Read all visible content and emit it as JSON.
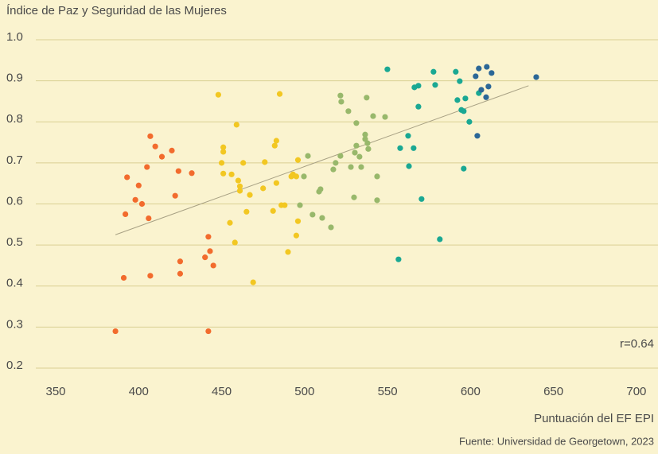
{
  "chart_data": {
    "type": "scatter",
    "title": "Índice de Paz y Seguridad de las Mujeres",
    "x_label": "Puntuación del EF EPI",
    "source": "Fuente: Universidad de Georgetown, 2023",
    "annotation": "r=0.64",
    "xlim": [
      338,
      713
    ],
    "ylim": [
      0.2,
      1.0
    ],
    "xticks": [
      350,
      400,
      450,
      500,
      550,
      600,
      650,
      700
    ],
    "yticks": [
      0.2,
      0.3,
      0.4,
      0.5,
      0.6,
      0.7,
      0.8,
      0.9,
      {
        "value": 1.0,
        "label": "1.0"
      }
    ],
    "grid": true,
    "series": [
      {
        "color": "#f26b2d",
        "x": [
          386,
          391,
          393,
          392,
          398,
          400,
          402,
          405,
          406,
          407,
          410,
          414,
          420,
          422,
          424,
          432,
          425,
          425,
          407,
          440,
          442,
          443,
          445,
          442
        ],
        "values": [
          0.29,
          0.42,
          0.665,
          0.575,
          0.61,
          0.645,
          0.6,
          0.69,
          0.565,
          0.765,
          0.74,
          0.715,
          0.73,
          0.62,
          0.68,
          0.675,
          0.46,
          0.43,
          0.425,
          0.47,
          0.52,
          0.485,
          0.45,
          0.29
        ]
      },
      {
        "color": "#f2c722",
        "x": [
          448,
          451,
          451,
          450,
          451,
          456,
          455,
          458,
          459,
          460,
          461,
          461,
          463,
          465,
          467,
          469,
          475,
          476,
          481,
          482,
          483,
          483,
          485,
          486,
          488,
          490,
          492,
          493,
          495,
          495,
          496,
          496
        ],
        "values": [
          0.866,
          0.738,
          0.727,
          0.7,
          0.674,
          0.672,
          0.554,
          0.506,
          0.793,
          0.657,
          0.643,
          0.632,
          0.7,
          0.581,
          0.622,
          0.409,
          0.638,
          0.702,
          0.583,
          0.742,
          0.754,
          0.651,
          0.868,
          0.597,
          0.597,
          0.483,
          0.667,
          0.672,
          0.667,
          0.523,
          0.558,
          0.707
        ]
      },
      {
        "color": "#98b86b",
        "x": [
          521.6,
          522.1,
          537.4,
          526.4,
          531.2,
          541.3,
          548.5,
          531.2,
          530.3,
          533.1,
          534.1,
          536.5,
          536.5,
          537.9,
          538.4,
          527.9,
          543.7,
          543.7,
          529.8,
          521.6,
          518.7,
          517.3,
          509.6,
          508.7,
          504.8,
          510.6,
          502,
          499.6,
          497.2,
          515.9
        ],
        "values": [
          0.864,
          0.849,
          0.859,
          0.826,
          0.797,
          0.814,
          0.812,
          0.742,
          0.725,
          0.715,
          0.69,
          0.758,
          0.769,
          0.748,
          0.734,
          0.69,
          0.667,
          0.609,
          0.616,
          0.717,
          0.7,
          0.684,
          0.636,
          0.63,
          0.574,
          0.566,
          0.717,
          0.667,
          0.597,
          0.543
        ]
      },
      {
        "color": "#1aa893",
        "x": [
          549.9,
          566.2,
          568.6,
          577.7,
          578.7,
          591.1,
          593.5,
          592.1,
          594.5,
          596.9,
          595.9,
          599.3,
          605,
          568.6,
          562.4,
          557.6,
          565.7,
          562.9,
          570.5,
          581.5,
          556.6,
          595.9
        ],
        "values": [
          0.928,
          0.884,
          0.888,
          0.922,
          0.89,
          0.922,
          0.899,
          0.853,
          0.829,
          0.857,
          0.826,
          0.8,
          0.87,
          0.837,
          0.766,
          0.736,
          0.736,
          0.692,
          0.612,
          0.514,
          0.465,
          0.686
        ]
      },
      {
        "color": "#2b6797",
        "x": [
          603.1,
          605,
          609.8,
          606.5,
          610.8,
          609.4,
          612.7,
          604.1,
          639.6
        ],
        "values": [
          0.911,
          0.93,
          0.934,
          0.878,
          0.886,
          0.86,
          0.919,
          0.766,
          0.909
        ]
      }
    ],
    "trendline": {
      "color": "#a8a184",
      "x": [
        386,
        635
      ],
      "values": [
        0.525,
        0.888
      ]
    }
  }
}
